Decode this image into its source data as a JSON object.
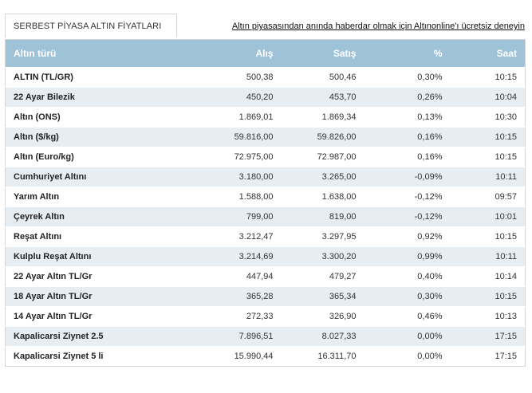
{
  "header": {
    "tab_title": "SERBEST PİYASA ALTIN FİYATLARI",
    "promo_link": "Altın piyasasından anında haberdar olmak için Altınonline'ı ücretsiz deneyin"
  },
  "table": {
    "columns": [
      "Altın türü",
      "Alış",
      "Satış",
      "%",
      "Saat"
    ],
    "rows": [
      {
        "name": "ALTIN (TL/GR)",
        "alis": "500,38",
        "satis": "500,46",
        "pct": "0,30%",
        "saat": "10:15"
      },
      {
        "name": "22 Ayar Bilezik",
        "alis": "450,20",
        "satis": "453,70",
        "pct": "0,26%",
        "saat": "10:04"
      },
      {
        "name": "Altın (ONS)",
        "alis": "1.869,01",
        "satis": "1.869,34",
        "pct": "0,13%",
        "saat": "10:30"
      },
      {
        "name": "Altın ($/kg)",
        "alis": "59.816,00",
        "satis": "59.826,00",
        "pct": "0,16%",
        "saat": "10:15"
      },
      {
        "name": "Altın (Euro/kg)",
        "alis": "72.975,00",
        "satis": "72.987,00",
        "pct": "0,16%",
        "saat": "10:15"
      },
      {
        "name": "Cumhuriyet Altını",
        "alis": "3.180,00",
        "satis": "3.265,00",
        "pct": "-0,09%",
        "saat": "10:11"
      },
      {
        "name": "Yarım Altın",
        "alis": "1.588,00",
        "satis": "1.638,00",
        "pct": "-0,12%",
        "saat": "09:57"
      },
      {
        "name": "Çeyrek Altın",
        "alis": "799,00",
        "satis": "819,00",
        "pct": "-0,12%",
        "saat": "10:01"
      },
      {
        "name": "Reşat Altını",
        "alis": "3.212,47",
        "satis": "3.297,95",
        "pct": "0,92%",
        "saat": "10:15"
      },
      {
        "name": "Kulplu Reşat Altını",
        "alis": "3.214,69",
        "satis": "3.300,20",
        "pct": "0,99%",
        "saat": "10:11"
      },
      {
        "name": "22 Ayar Altın TL/Gr",
        "alis": "447,94",
        "satis": "479,27",
        "pct": "0,40%",
        "saat": "10:14"
      },
      {
        "name": "18 Ayar Altın TL/Gr",
        "alis": "365,28",
        "satis": "365,34",
        "pct": "0,30%",
        "saat": "10:15"
      },
      {
        "name": "14 Ayar Altın TL/Gr",
        "alis": "272,33",
        "satis": "326,90",
        "pct": "0,46%",
        "saat": "10:13"
      },
      {
        "name": "Kapalicarsi Ziynet 2.5",
        "alis": "7.896,51",
        "satis": "8.027,33",
        "pct": "0,00%",
        "saat": "17:15"
      },
      {
        "name": "Kapalicarsi Ziynet 5 li",
        "alis": "15.990,44",
        "satis": "16.311,70",
        "pct": "0,00%",
        "saat": "17:15"
      }
    ]
  },
  "colors": {
    "header_bg": "#9ec2d8",
    "stripe_bg": "#e6eef4",
    "border": "#d6d6d6"
  }
}
